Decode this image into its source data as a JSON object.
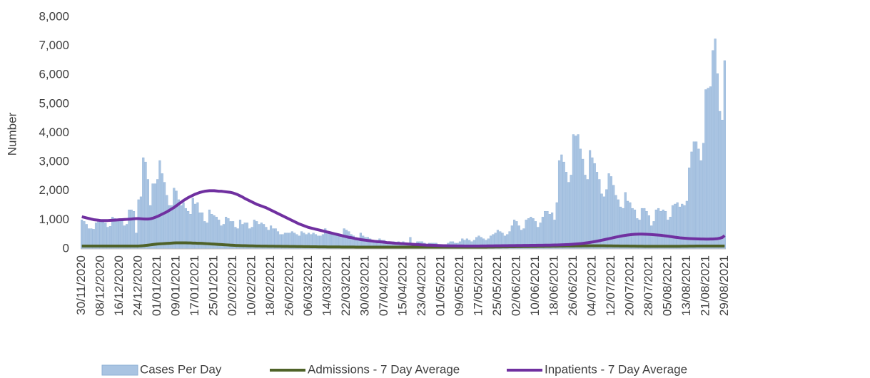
{
  "chart_data": {
    "type": "bar",
    "y_label": "Number",
    "ylim": [
      0,
      8000
    ],
    "yticks": [
      0,
      {
        "value": 1000,
        "label": "1,000"
      },
      {
        "value": 2000,
        "label": "2,000"
      },
      {
        "value": 3000,
        "label": "3,000"
      },
      {
        "value": 4000,
        "label": "4,000"
      },
      {
        "value": 5000,
        "label": "5,000"
      },
      {
        "value": 6000,
        "label": "6,000"
      },
      {
        "value": 7000,
        "label": "7,000"
      },
      {
        "value": 8000,
        "label": "8,000"
      }
    ],
    "legend": "bottom",
    "categories": [
      "30/11/2020",
      null,
      null,
      null,
      null,
      null,
      null,
      null,
      "08/12/2020",
      null,
      null,
      null,
      null,
      null,
      null,
      null,
      "16/12/2020",
      null,
      null,
      null,
      null,
      null,
      null,
      null,
      "24/12/2020",
      null,
      null,
      null,
      null,
      null,
      null,
      null,
      "01/01/2021",
      null,
      null,
      null,
      null,
      null,
      null,
      null,
      "09/01/2021",
      null,
      null,
      null,
      null,
      null,
      null,
      null,
      "17/01/2021",
      null,
      null,
      null,
      null,
      null,
      null,
      null,
      "25/01/2021",
      null,
      null,
      null,
      null,
      null,
      null,
      null,
      "02/02/2021",
      null,
      null,
      null,
      null,
      null,
      null,
      null,
      "10/02/2021",
      null,
      null,
      null,
      null,
      null,
      null,
      null,
      "18/02/2021",
      null,
      null,
      null,
      null,
      null,
      null,
      null,
      "26/02/2021",
      null,
      null,
      null,
      null,
      null,
      null,
      null,
      "06/03/2021",
      null,
      null,
      null,
      null,
      null,
      null,
      null,
      "14/03/2021",
      null,
      null,
      null,
      null,
      null,
      null,
      null,
      "22/03/2021",
      null,
      null,
      null,
      null,
      null,
      null,
      null,
      "30/03/2021",
      null,
      null,
      null,
      null,
      null,
      null,
      null,
      "07/04/2021",
      null,
      null,
      null,
      null,
      null,
      null,
      null,
      "15/04/2021",
      null,
      null,
      null,
      null,
      null,
      null,
      null,
      "23/04/2021",
      null,
      null,
      null,
      null,
      null,
      null,
      null,
      "01/05/2021",
      null,
      null,
      null,
      null,
      null,
      null,
      null,
      "09/05/2021",
      null,
      null,
      null,
      null,
      null,
      null,
      null,
      "17/05/2021",
      null,
      null,
      null,
      null,
      null,
      null,
      null,
      "25/05/2021",
      null,
      null,
      null,
      null,
      null,
      null,
      null,
      "02/06/2021",
      null,
      null,
      null,
      null,
      null,
      null,
      null,
      "10/06/2021",
      null,
      null,
      null,
      null,
      null,
      null,
      null,
      "18/06/2021",
      null,
      null,
      null,
      null,
      null,
      null,
      null,
      "26/06/2021",
      null,
      null,
      null,
      null,
      null,
      null,
      null,
      "04/07/2021",
      null,
      null,
      null,
      null,
      null,
      null,
      null,
      "12/07/2021",
      null,
      null,
      null,
      null,
      null,
      null,
      null,
      "20/07/2021",
      null,
      null,
      null,
      null,
      null,
      null,
      null,
      "28/07/2021",
      null,
      null,
      null,
      null,
      null,
      null,
      null,
      "05/08/2021",
      null,
      null,
      null,
      null,
      null,
      null,
      null,
      "13/08/2021",
      null,
      null,
      null,
      null,
      null,
      null,
      null,
      "21/08/2021",
      null,
      null,
      null,
      null,
      null,
      null,
      null,
      "29/08/2021"
    ],
    "series": [
      {
        "name": "Cases Per Day",
        "type": "bar",
        "color": "#a9c4e2",
        "values": [
          1000,
          950,
          850,
          700,
          700,
          680,
          900,
          1000,
          1000,
          950,
          900,
          750,
          780,
          1100,
          1050,
          1000,
          1050,
          1000,
          800,
          850,
          1350,
          1350,
          1300,
          550,
          1700,
          1800,
          3150,
          3000,
          2400,
          1500,
          2250,
          2250,
          2400,
          3050,
          2600,
          2300,
          1850,
          1500,
          1500,
          2100,
          2000,
          1700,
          1500,
          1600,
          1400,
          1300,
          1200,
          1750,
          1550,
          1600,
          1250,
          1250,
          950,
          900,
          1350,
          1200,
          1150,
          1100,
          1000,
          800,
          850,
          1100,
          1050,
          950,
          950,
          750,
          700,
          1000,
          850,
          900,
          900,
          700,
          750,
          1000,
          950,
          850,
          900,
          850,
          750,
          650,
          800,
          700,
          700,
          600,
          500,
          500,
          550,
          550,
          550,
          600,
          550,
          500,
          450,
          600,
          550,
          500,
          550,
          500,
          550,
          500,
          450,
          450,
          500,
          700,
          600,
          550,
          550,
          500,
          450,
          450,
          400,
          700,
          650,
          600,
          500,
          450,
          400,
          350,
          550,
          450,
          400,
          400,
          350,
          300,
          300,
          300,
          350,
          300,
          300,
          250,
          250,
          200,
          250,
          200,
          250,
          200,
          250,
          200,
          150,
          400,
          200,
          150,
          250,
          250,
          250,
          200,
          150,
          200,
          200,
          200,
          200,
          150,
          150,
          100,
          150,
          200,
          250,
          250,
          200,
          200,
          250,
          350,
          300,
          350,
          300,
          250,
          300,
          400,
          450,
          400,
          350,
          300,
          350,
          450,
          500,
          550,
          650,
          600,
          550,
          450,
          500,
          600,
          800,
          1000,
          950,
          800,
          650,
          700,
          1000,
          1050,
          1100,
          1050,
          950,
          750,
          900,
          1100,
          1300,
          1300,
          1200,
          1250,
          1000,
          1600,
          3050,
          3250,
          3000,
          2650,
          2300,
          2550,
          3950,
          3900,
          3950,
          3450,
          3100,
          2550,
          2400,
          3400,
          3150,
          2950,
          2650,
          2400,
          1900,
          1800,
          2050,
          2600,
          2500,
          2200,
          1850,
          1700,
          1450,
          1400,
          1950,
          1650,
          1600,
          1400,
          1350,
          1050,
          1000,
          1400,
          1400,
          1300,
          1150,
          800,
          950,
          1350,
          1400,
          1300,
          1350,
          1300,
          1000,
          1100,
          1500,
          1550,
          1600,
          1450,
          1550,
          1500,
          1650,
          2800,
          3350,
          3700,
          3700,
          3450,
          3050,
          3650,
          5500,
          5550,
          5600,
          6850,
          7250,
          6050,
          4750,
          4450,
          6500
        ]
      },
      {
        "name": "Admissions - 7 Day Average",
        "type": "line",
        "color": "#4f6228",
        "values": [
          100,
          100,
          100,
          100,
          100,
          100,
          100,
          100,
          100,
          100,
          100,
          100,
          100,
          100,
          100,
          100,
          100,
          100,
          100,
          100,
          100,
          100,
          100,
          100,
          100,
          105,
          110,
          120,
          130,
          140,
          150,
          160,
          170,
          175,
          180,
          185,
          190,
          195,
          200,
          205,
          210,
          210,
          210,
          210,
          210,
          205,
          205,
          200,
          200,
          195,
          195,
          190,
          185,
          180,
          175,
          170,
          165,
          160,
          155,
          150,
          145,
          140,
          135,
          130,
          125,
          120,
          118,
          115,
          112,
          110,
          108,
          106,
          104,
          102,
          100,
          98,
          96,
          95,
          94,
          93,
          92,
          91,
          90,
          89,
          88,
          87,
          86,
          85,
          84,
          83,
          82,
          81,
          80,
          79,
          78,
          77,
          76,
          75,
          74,
          73,
          72,
          71,
          70,
          70,
          69,
          69,
          68,
          68,
          67,
          67,
          66,
          66,
          65,
          65,
          64,
          64,
          63,
          63,
          62,
          62,
          61,
          61,
          60,
          60,
          60,
          60,
          60,
          60,
          60,
          60,
          60,
          60,
          60,
          60,
          60,
          60,
          60,
          60,
          60,
          60,
          60,
          60,
          60,
          60,
          60,
          60,
          60,
          60,
          60,
          60,
          60,
          60,
          60,
          60,
          60,
          60,
          60,
          60,
          60,
          60,
          60,
          60,
          60,
          60,
          60,
          60,
          60,
          60,
          60,
          61,
          62,
          63,
          64,
          65,
          66,
          67,
          68,
          69,
          70,
          71,
          72,
          73,
          74,
          75,
          76,
          77,
          78,
          79,
          80,
          81,
          82,
          83,
          84,
          85,
          86,
          87,
          88,
          89,
          90,
          91,
          92,
          93,
          94,
          95,
          96,
          97,
          98,
          99,
          100,
          101,
          102,
          103,
          104,
          105,
          106,
          107,
          108,
          108,
          108,
          108,
          108,
          107,
          106,
          105,
          104,
          103,
          102,
          101,
          100,
          99,
          98,
          97,
          96,
          95,
          94,
          93,
          92,
          91,
          90,
          90,
          90,
          90,
          90,
          90,
          90,
          90,
          90,
          90,
          90,
          90,
          90,
          90,
          90,
          90,
          91,
          92,
          93,
          94,
          95,
          96,
          97,
          98,
          99,
          100,
          100,
          100,
          100,
          100,
          100,
          100,
          100,
          100,
          100
        ]
      },
      {
        "name": "Inpatients - 7 Day Average",
        "type": "line",
        "color": "#7030a0",
        "values": [
          1110,
          1090,
          1070,
          1050,
          1030,
          1010,
          1000,
          990,
          980,
          980,
          980,
          980,
          985,
          990,
          995,
          1000,
          1005,
          1010,
          1015,
          1020,
          1025,
          1030,
          1040,
          1045,
          1045,
          1040,
          1035,
          1030,
          1030,
          1040,
          1060,
          1090,
          1120,
          1160,
          1200,
          1240,
          1280,
          1330,
          1380,
          1430,
          1490,
          1550,
          1610,
          1670,
          1720,
          1770,
          1810,
          1850,
          1890,
          1920,
          1950,
          1970,
          1990,
          2000,
          2010,
          2010,
          2010,
          2000,
          1990,
          1990,
          1980,
          1970,
          1960,
          1950,
          1930,
          1900,
          1870,
          1830,
          1790,
          1740,
          1700,
          1660,
          1620,
          1580,
          1540,
          1510,
          1480,
          1450,
          1420,
          1380,
          1340,
          1300,
          1260,
          1220,
          1180,
          1140,
          1100,
          1060,
          1020,
          980,
          940,
          900,
          860,
          830,
          800,
          770,
          740,
          720,
          700,
          680,
          660,
          640,
          620,
          600,
          580,
          560,
          540,
          520,
          500,
          480,
          460,
          440,
          420,
          400,
          390,
          370,
          350,
          340,
          320,
          310,
          300,
          290,
          280,
          270,
          260,
          250,
          245,
          240,
          230,
          220,
          215,
          210,
          200,
          195,
          190,
          185,
          180,
          175,
          170,
          165,
          160,
          155,
          150,
          145,
          140,
          135,
          130,
          128,
          125,
          122,
          120,
          118,
          115,
          112,
          110,
          108,
          106,
          105,
          104,
          103,
          102,
          101,
          100,
          100,
          100,
          100,
          100,
          100,
          100,
          101,
          102,
          103,
          104,
          105,
          106,
          107,
          108,
          109,
          110,
          111,
          112,
          113,
          114,
          115,
          116,
          117,
          118,
          119,
          120,
          121,
          122,
          123,
          124,
          125,
          126,
          127,
          128,
          129,
          130,
          132,
          134,
          136,
          138,
          141,
          144,
          148,
          152,
          157,
          162,
          168,
          175,
          183,
          192,
          202,
          213,
          225,
          238,
          252,
          267,
          283,
          300,
          317,
          335,
          353,
          371,
          389,
          407,
          424,
          440,
          455,
          468,
          480,
          490,
          498,
          504,
          508,
          510,
          510,
          508,
          505,
          500,
          495,
          490,
          484,
          477,
          470,
          460,
          450,
          440,
          428,
          416,
          404,
          393,
          383,
          375,
          368,
          362,
          357,
          353,
          350,
          347,
          345,
          343,
          341,
          340,
          340,
          341,
          343,
          347,
          355,
          370,
          395,
          460
        ]
      }
    ]
  }
}
